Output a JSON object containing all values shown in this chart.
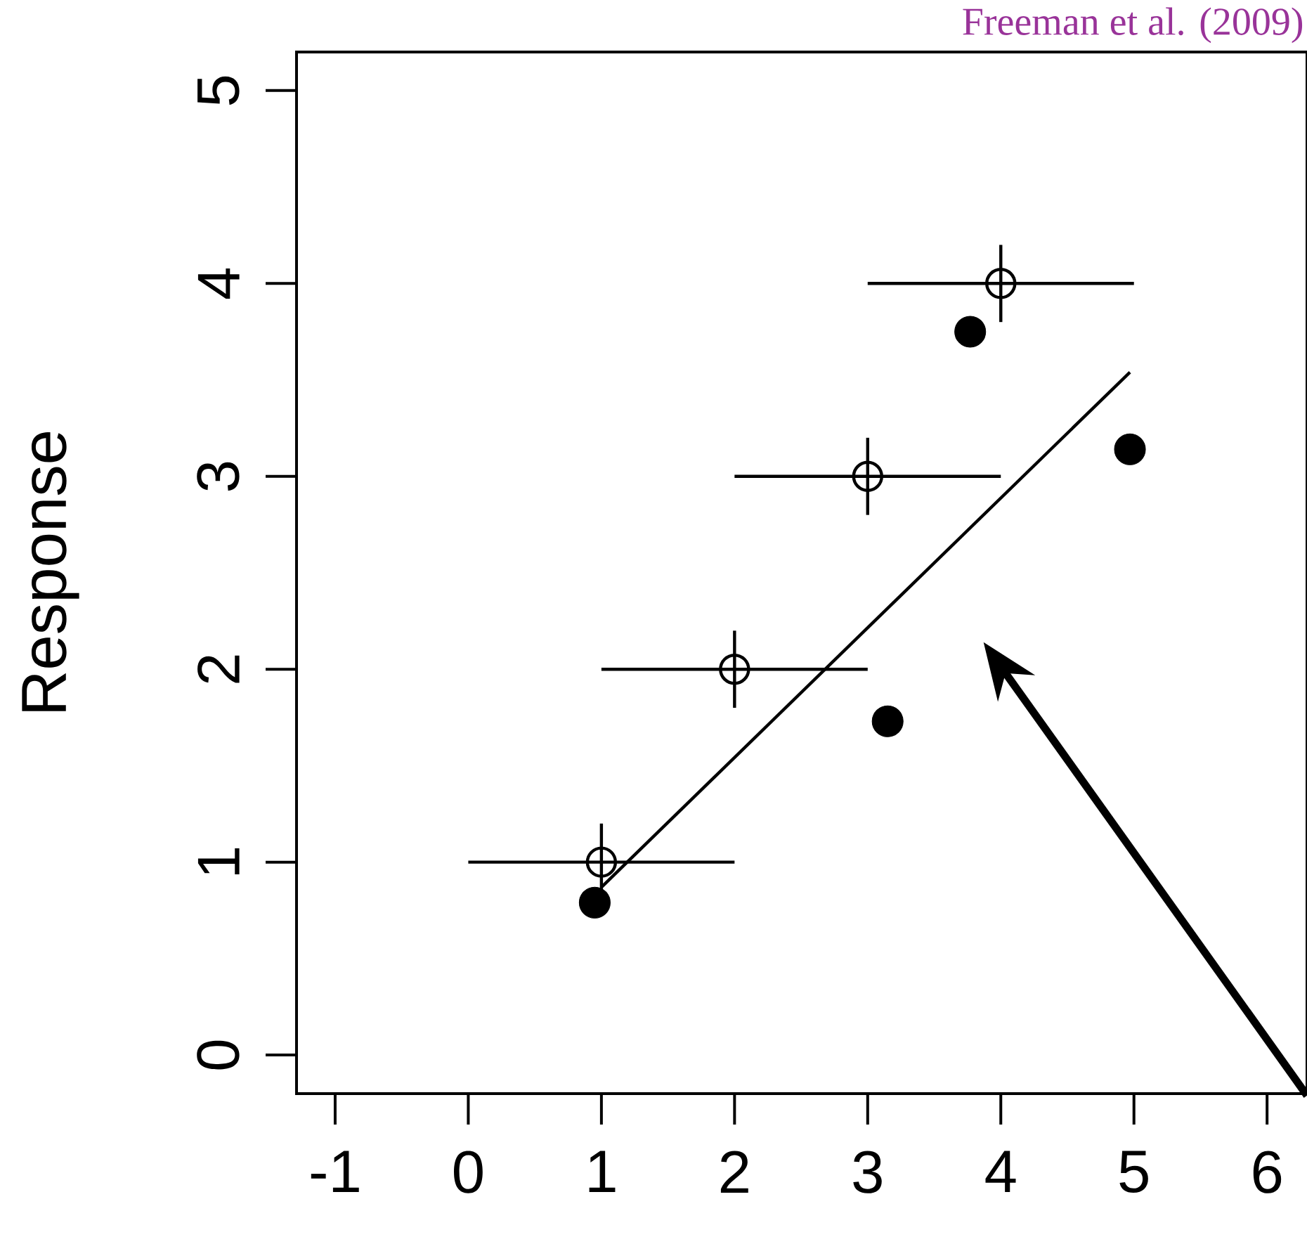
{
  "chart_data": {
    "type": "scatter",
    "ylabel": "Response",
    "annotations": [
      "Freeman et al. (2009)"
    ],
    "xlim": [
      -1.29,
      6.3
    ],
    "ylim": [
      -0.2,
      5.2
    ],
    "xticks": [
      -1,
      0,
      1,
      2,
      3,
      4,
      5,
      6
    ],
    "yticks": [
      0,
      1,
      2,
      3,
      4,
      5
    ],
    "series": [
      {
        "color": "#000000",
        "marker": "circle",
        "x": [
          1,
          2,
          3,
          4
        ],
        "values": [
          1,
          2,
          3,
          4
        ],
        "errors": [
          0.2,
          0.2,
          0.2,
          0.2
        ],
        "xerrors": [
          1,
          1,
          1,
          1
        ]
      },
      {
        "color": "#000000",
        "marker": "circle",
        "x": [
          0.95,
          3.15,
          3.77,
          4.97
        ],
        "values": [
          0.79,
          1.73,
          3.75,
          3.14
        ]
      },
      {
        "type": "line",
        "color": "#000000",
        "marker": "none",
        "x": [
          1.0,
          4.97
        ],
        "values": [
          0.87,
          3.54
        ]
      }
    ]
  }
}
